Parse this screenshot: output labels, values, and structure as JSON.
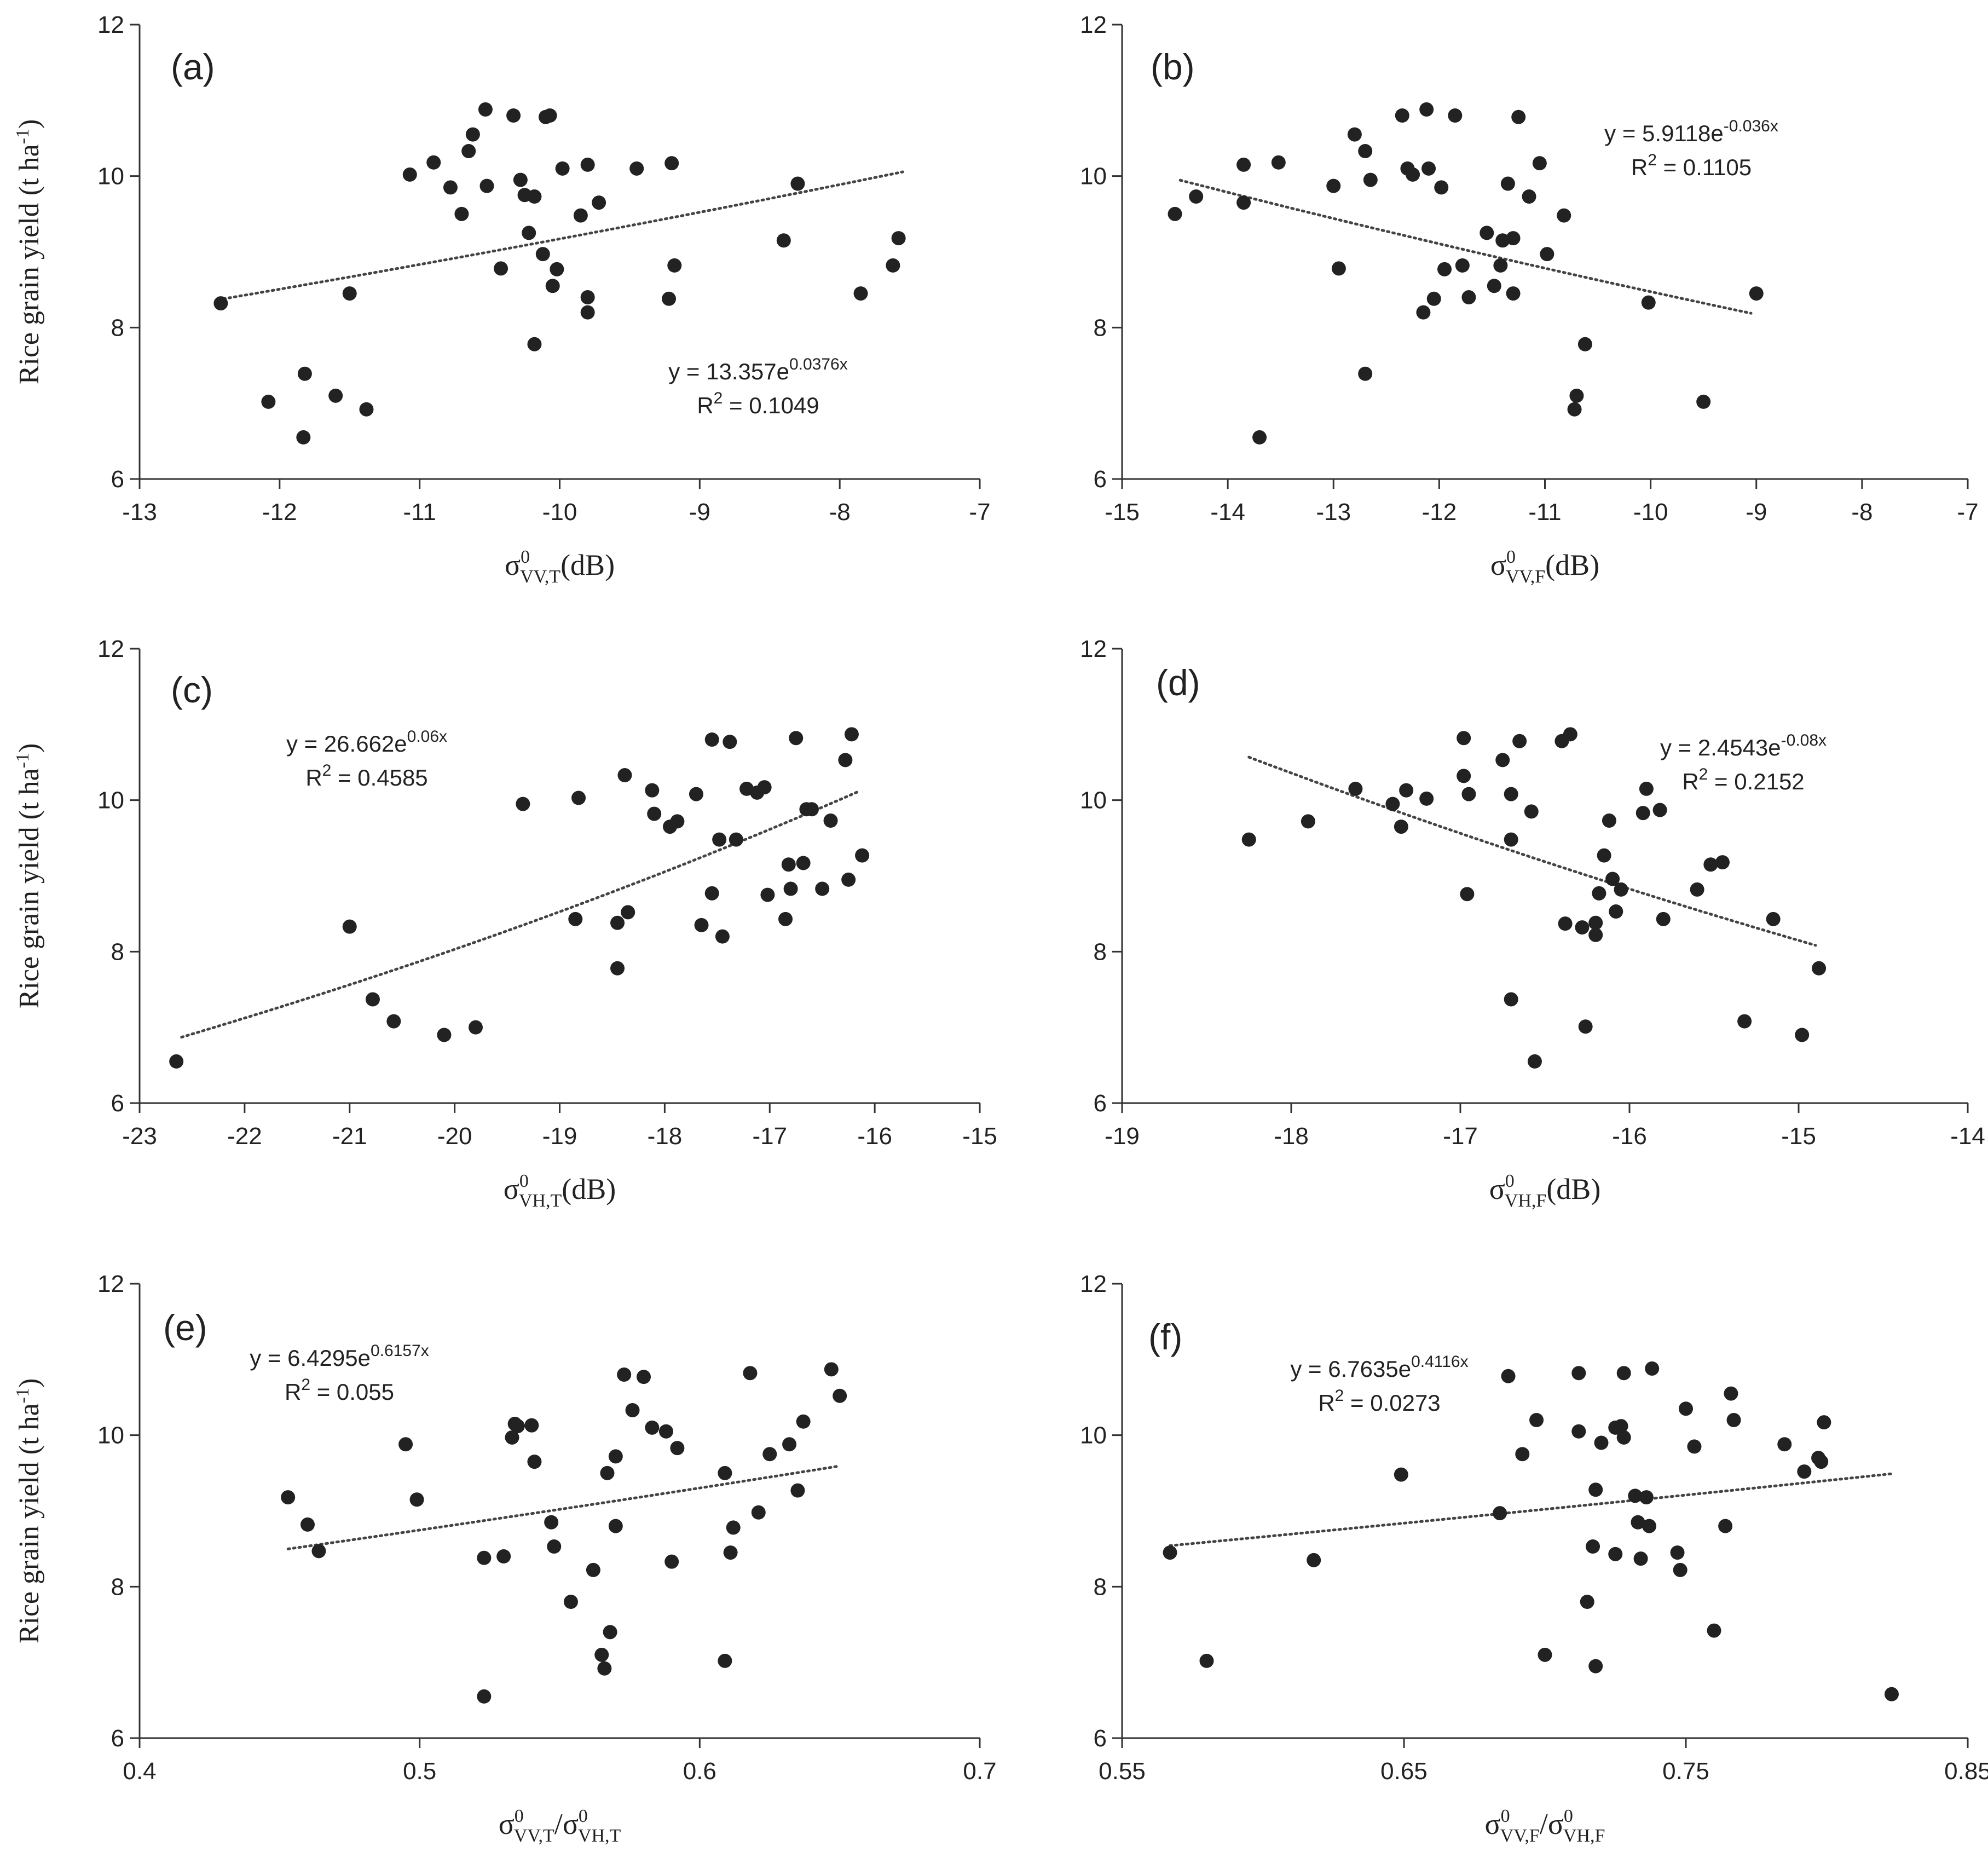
{
  "figure": {
    "y_axis_label": "Rice grain yield (t ha",
    "y_axis_label_sup": "-1",
    "y_axis_label_end": ")"
  },
  "chart_data": [
    {
      "id": "a",
      "type": "scatter",
      "panel_label": "(a)",
      "x_label": {
        "sigma": "σ",
        "sup": "0",
        "sub": "VV,T",
        "tail": "(dB)"
      },
      "xlim": [
        -13,
        -7
      ],
      "ylim": [
        6,
        12
      ],
      "xticks": [
        -13,
        -12,
        -11,
        -10,
        -9,
        -8,
        -7
      ],
      "yticks": [
        6,
        8,
        10,
        12
      ],
      "trend": {
        "type": "exponential",
        "a": 13.357,
        "b": 0.0376,
        "x_range": [
          -12.4,
          -7.55
        ]
      },
      "equation": {
        "prefix": "y = 13.357e",
        "exponent": "0.0376x"
      },
      "r_squared": {
        "prefix": "R",
        "sup": "2",
        "value": " = 0.1049"
      },
      "legend_position": "lower-right",
      "points": [
        [
          -12.42,
          8.32
        ],
        [
          -12.08,
          7.02
        ],
        [
          -11.83,
          6.55
        ],
        [
          -11.82,
          7.39
        ],
        [
          -11.6,
          7.1
        ],
        [
          -11.5,
          8.45
        ],
        [
          -11.38,
          6.92
        ],
        [
          -11.07,
          10.02
        ],
        [
          -10.9,
          10.18
        ],
        [
          -10.78,
          9.85
        ],
        [
          -10.7,
          9.5
        ],
        [
          -10.65,
          10.33
        ],
        [
          -10.62,
          10.55
        ],
        [
          -10.53,
          10.88
        ],
        [
          -10.52,
          9.87
        ],
        [
          -10.42,
          8.78
        ],
        [
          -10.33,
          10.8
        ],
        [
          -10.28,
          9.95
        ],
        [
          -10.25,
          9.75
        ],
        [
          -10.22,
          9.25
        ],
        [
          -10.18,
          9.73
        ],
        [
          -10.18,
          7.78
        ],
        [
          -10.12,
          8.97
        ],
        [
          -10.1,
          10.78
        ],
        [
          -10.07,
          10.8
        ],
        [
          -10.05,
          8.55
        ],
        [
          -10.02,
          8.77
        ],
        [
          -9.98,
          10.1
        ],
        [
          -9.85,
          9.48
        ],
        [
          -9.8,
          10.15
        ],
        [
          -9.8,
          8.4
        ],
        [
          -9.8,
          8.2
        ],
        [
          -9.72,
          9.65
        ],
        [
          -9.45,
          10.1
        ],
        [
          -9.22,
          8.38
        ],
        [
          -9.2,
          10.17
        ],
        [
          -9.18,
          8.82
        ],
        [
          -8.4,
          9.15
        ],
        [
          -8.3,
          9.9
        ],
        [
          -7.85,
          8.45
        ],
        [
          -7.62,
          8.82
        ],
        [
          -7.58,
          9.18
        ]
      ]
    },
    {
      "id": "b",
      "type": "scatter",
      "panel_label": "(b)",
      "x_label": {
        "sigma": "σ",
        "sup": "0",
        "sub": "VV,F",
        "tail": "(dB)"
      },
      "xlim": [
        -15,
        -7
      ],
      "ylim": [
        6,
        12
      ],
      "xticks": [
        -15,
        -14,
        -13,
        -12,
        -11,
        -10,
        -9,
        -8,
        -7
      ],
      "yticks": [
        6,
        8,
        10,
        12
      ],
      "trend": {
        "type": "exponential",
        "a": 5.9118,
        "b": -0.036,
        "x_range": [
          -14.45,
          -9.05
        ]
      },
      "equation": {
        "prefix": "y = 5.9118e",
        "exponent": "-0.036x"
      },
      "r_squared": {
        "prefix": "R",
        "sup": "2",
        "value": " = 0.1105"
      },
      "legend_position": "top-right",
      "points": [
        [
          -14.5,
          9.5
        ],
        [
          -14.3,
          9.73
        ],
        [
          -13.85,
          9.65
        ],
        [
          -13.85,
          10.15
        ],
        [
          -13.7,
          6.55
        ],
        [
          -13.52,
          10.18
        ],
        [
          -13.0,
          9.87
        ],
        [
          -12.95,
          8.78
        ],
        [
          -12.8,
          10.55
        ],
        [
          -12.7,
          10.33
        ],
        [
          -12.7,
          7.39
        ],
        [
          -12.65,
          9.95
        ],
        [
          -12.35,
          10.8
        ],
        [
          -12.3,
          10.1
        ],
        [
          -12.25,
          10.02
        ],
        [
          -12.15,
          8.2
        ],
        [
          -12.12,
          10.88
        ],
        [
          -12.1,
          10.1
        ],
        [
          -12.05,
          8.38
        ],
        [
          -11.98,
          9.85
        ],
        [
          -11.95,
          8.77
        ],
        [
          -11.85,
          10.8
        ],
        [
          -11.78,
          8.82
        ],
        [
          -11.72,
          8.4
        ],
        [
          -11.55,
          9.25
        ],
        [
          -11.48,
          8.55
        ],
        [
          -11.42,
          8.82
        ],
        [
          -11.4,
          9.15
        ],
        [
          -11.35,
          9.9
        ],
        [
          -11.3,
          9.18
        ],
        [
          -11.3,
          8.45
        ],
        [
          -11.25,
          10.78
        ],
        [
          -11.15,
          9.73
        ],
        [
          -11.05,
          10.17
        ],
        [
          -10.98,
          8.97
        ],
        [
          -10.82,
          9.48
        ],
        [
          -10.72,
          6.92
        ],
        [
          -10.7,
          7.1
        ],
        [
          -10.62,
          7.78
        ],
        [
          -10.02,
          8.33
        ],
        [
          -9.5,
          7.02
        ],
        [
          -9.0,
          8.45
        ]
      ]
    },
    {
      "id": "c",
      "type": "scatter",
      "panel_label": "(c)",
      "x_label": {
        "sigma": "σ",
        "sup": "0",
        "sub": "VH,T",
        "tail": "(dB)"
      },
      "xlim": [
        -23,
        -15
      ],
      "ylim": [
        6,
        12
      ],
      "xticks": [
        -23,
        -22,
        -21,
        -20,
        -19,
        -18,
        -17,
        -16,
        -15
      ],
      "yticks": [
        6,
        8,
        10,
        12
      ],
      "trend": {
        "type": "exponential",
        "a": 26.662,
        "b": 0.06,
        "x_range": [
          -22.6,
          -16.15
        ]
      },
      "equation": {
        "prefix": "y = 26.662e",
        "exponent": "0.06x"
      },
      "r_squared": {
        "prefix": "R",
        "sup": "2",
        "value": " = 0.4585"
      },
      "legend_position": "top-left",
      "points": [
        [
          -22.65,
          6.55
        ],
        [
          -21.0,
          8.33
        ],
        [
          -20.78,
          7.37
        ],
        [
          -20.58,
          7.08
        ],
        [
          -20.1,
          6.9
        ],
        [
          -19.8,
          7.0
        ],
        [
          -19.35,
          9.95
        ],
        [
          -18.85,
          8.43
        ],
        [
          -18.82,
          10.03
        ],
        [
          -18.45,
          8.38
        ],
        [
          -18.45,
          7.78
        ],
        [
          -18.38,
          10.33
        ],
        [
          -18.35,
          8.52
        ],
        [
          -18.12,
          10.13
        ],
        [
          -18.1,
          9.82
        ],
        [
          -17.95,
          9.65
        ],
        [
          -17.88,
          9.72
        ],
        [
          -17.7,
          10.08
        ],
        [
          -17.65,
          8.35
        ],
        [
          -17.55,
          10.8
        ],
        [
          -17.55,
          8.77
        ],
        [
          -17.48,
          9.48
        ],
        [
          -17.45,
          8.2
        ],
        [
          -17.38,
          10.77
        ],
        [
          -17.32,
          9.48
        ],
        [
          -17.22,
          10.15
        ],
        [
          -17.12,
          10.1
        ],
        [
          -17.05,
          10.17
        ],
        [
          -17.02,
          8.75
        ],
        [
          -16.85,
          8.43
        ],
        [
          -16.82,
          9.15
        ],
        [
          -16.8,
          8.83
        ],
        [
          -16.75,
          10.82
        ],
        [
          -16.68,
          9.17
        ],
        [
          -16.65,
          9.88
        ],
        [
          -16.6,
          9.88
        ],
        [
          -16.5,
          8.83
        ],
        [
          -16.42,
          9.73
        ],
        [
          -16.28,
          10.53
        ],
        [
          -16.25,
          8.95
        ],
        [
          -16.22,
          10.87
        ],
        [
          -16.12,
          9.27
        ]
      ]
    },
    {
      "id": "d",
      "type": "scatter",
      "panel_label": "(d)",
      "x_label": {
        "sigma": "σ",
        "sup": "0",
        "sub": "VH,F",
        "tail": "(dB)"
      },
      "xlim": [
        -19,
        -14
      ],
      "ylim": [
        6,
        12
      ],
      "xticks": [
        -19,
        -18,
        -17,
        -16,
        -15,
        -14
      ],
      "yticks": [
        6,
        8,
        10,
        12
      ],
      "trend": {
        "type": "exponential",
        "a": 2.4543,
        "b": -0.08,
        "x_range": [
          -18.25,
          -14.9
        ]
      },
      "equation": {
        "prefix": "y = 2.4543e",
        "exponent": "-0.08x"
      },
      "r_squared": {
        "prefix": "R",
        "sup": "2",
        "value": " = 0.2152"
      },
      "legend_position": "top-right",
      "points": [
        [
          -18.25,
          9.48
        ],
        [
          -17.9,
          9.72
        ],
        [
          -17.62,
          10.15
        ],
        [
          -17.4,
          9.95
        ],
        [
          -17.35,
          9.65
        ],
        [
          -17.32,
          10.13
        ],
        [
          -17.2,
          10.02
        ],
        [
          -16.98,
          10.82
        ],
        [
          -16.98,
          10.32
        ],
        [
          -16.96,
          8.76
        ],
        [
          -16.95,
          10.08
        ],
        [
          -16.75,
          10.53
        ],
        [
          -16.7,
          10.08
        ],
        [
          -16.7,
          9.48
        ],
        [
          -16.7,
          7.37
        ],
        [
          -16.65,
          10.78
        ],
        [
          -16.58,
          9.85
        ],
        [
          -16.56,
          6.55
        ],
        [
          -16.4,
          10.78
        ],
        [
          -16.38,
          8.37
        ],
        [
          -16.35,
          10.87
        ],
        [
          -16.28,
          8.32
        ],
        [
          -16.26,
          7.01
        ],
        [
          -16.2,
          8.38
        ],
        [
          -16.2,
          8.22
        ],
        [
          -16.18,
          8.77
        ],
        [
          -16.15,
          9.27
        ],
        [
          -16.12,
          9.73
        ],
        [
          -16.1,
          8.96
        ],
        [
          -16.08,
          8.53
        ],
        [
          -16.05,
          8.82
        ],
        [
          -15.92,
          9.83
        ],
        [
          -15.9,
          10.15
        ],
        [
          -15.82,
          9.87
        ],
        [
          -15.8,
          8.43
        ],
        [
          -15.6,
          8.82
        ],
        [
          -15.52,
          9.15
        ],
        [
          -15.45,
          9.18
        ],
        [
          -15.32,
          7.08
        ],
        [
          -15.15,
          8.43
        ],
        [
          -14.98,
          6.9
        ],
        [
          -14.88,
          7.78
        ]
      ]
    },
    {
      "id": "e",
      "type": "scatter",
      "panel_label": "(e)",
      "x_label": {
        "sigma": "σ",
        "sup": "0",
        "sub": "VV,T",
        "slash": "/",
        "sigma2": "σ",
        "sup2": "0",
        "sub2": "VH,T"
      },
      "xlim": [
        0.4,
        0.7
      ],
      "ylim": [
        6,
        12
      ],
      "xticks": [
        0.4,
        0.5,
        0.6,
        0.7
      ],
      "yticks": [
        6,
        8,
        10,
        12
      ],
      "trend": {
        "type": "exponential",
        "a": 6.4295,
        "b": 0.6157,
        "x_range": [
          0.453,
          0.65
        ]
      },
      "equation": {
        "prefix": "y = 6.4295e",
        "exponent": "0.6157x"
      },
      "r_squared": {
        "prefix": "R",
        "sup": "2",
        "value": " = 0.055"
      },
      "legend_position": "top-left",
      "points": [
        [
          0.453,
          9.18
        ],
        [
          0.46,
          8.82
        ],
        [
          0.464,
          8.47
        ],
        [
          0.495,
          9.88
        ],
        [
          0.499,
          9.15
        ],
        [
          0.523,
          8.38
        ],
        [
          0.523,
          6.55
        ],
        [
          0.53,
          8.4
        ],
        [
          0.533,
          9.97
        ],
        [
          0.534,
          10.15
        ],
        [
          0.535,
          10.12
        ],
        [
          0.54,
          10.13
        ],
        [
          0.541,
          9.65
        ],
        [
          0.547,
          8.85
        ],
        [
          0.548,
          8.53
        ],
        [
          0.554,
          7.8
        ],
        [
          0.562,
          8.22
        ],
        [
          0.565,
          7.1
        ],
        [
          0.566,
          6.92
        ],
        [
          0.567,
          9.5
        ],
        [
          0.568,
          7.4
        ],
        [
          0.57,
          9.72
        ],
        [
          0.57,
          8.8
        ],
        [
          0.573,
          10.8
        ],
        [
          0.576,
          10.33
        ],
        [
          0.58,
          10.77
        ],
        [
          0.583,
          10.1
        ],
        [
          0.588,
          10.05
        ],
        [
          0.59,
          8.33
        ],
        [
          0.592,
          9.83
        ],
        [
          0.609,
          9.5
        ],
        [
          0.609,
          7.02
        ],
        [
          0.611,
          8.45
        ],
        [
          0.612,
          8.78
        ],
        [
          0.618,
          10.82
        ],
        [
          0.621,
          8.98
        ],
        [
          0.625,
          9.75
        ],
        [
          0.632,
          9.88
        ],
        [
          0.635,
          9.27
        ],
        [
          0.637,
          10.18
        ],
        [
          0.647,
          10.87
        ],
        [
          0.65,
          10.52
        ]
      ]
    },
    {
      "id": "f",
      "type": "scatter",
      "panel_label": "(f)",
      "x_label": {
        "sigma": "σ",
        "sup": "0",
        "sub": "VV,F",
        "slash": "/",
        "sigma2": "σ",
        "sup2": "0",
        "sub2": "VH,F"
      },
      "xlim": [
        0.55,
        0.85
      ],
      "ylim": [
        6,
        12
      ],
      "xticks": [
        0.55,
        0.65,
        0.75,
        0.85
      ],
      "xtick_labels": [
        "0.55",
        "0.65",
        "0.75",
        "0.85"
      ],
      "yticks": [
        6,
        8,
        10,
        12
      ],
      "trend": {
        "type": "exponential",
        "a": 6.7635,
        "b": 0.4116,
        "x_range": [
          0.567,
          0.823
        ]
      },
      "equation": {
        "prefix": "y = 6.7635e",
        "exponent": "0.4116x"
      },
      "r_squared": {
        "prefix": "R",
        "sup": "2",
        "value": " = 0.0273"
      },
      "legend_position": "top-left",
      "points": [
        [
          0.567,
          8.45
        ],
        [
          0.58,
          7.02
        ],
        [
          0.618,
          8.35
        ],
        [
          0.649,
          9.48
        ],
        [
          0.684,
          8.97
        ],
        [
          0.687,
          10.78
        ],
        [
          0.692,
          9.75
        ],
        [
          0.697,
          10.2
        ],
        [
          0.7,
          7.1
        ],
        [
          0.712,
          10.82
        ],
        [
          0.712,
          10.05
        ],
        [
          0.715,
          7.8
        ],
        [
          0.717,
          8.53
        ],
        [
          0.718,
          9.28
        ],
        [
          0.718,
          6.95
        ],
        [
          0.72,
          9.9
        ],
        [
          0.725,
          10.1
        ],
        [
          0.725,
          8.43
        ],
        [
          0.727,
          10.12
        ],
        [
          0.728,
          10.82
        ],
        [
          0.728,
          9.97
        ],
        [
          0.732,
          9.2
        ],
        [
          0.733,
          8.85
        ],
        [
          0.734,
          8.37
        ],
        [
          0.736,
          9.18
        ],
        [
          0.737,
          8.8
        ],
        [
          0.738,
          10.88
        ],
        [
          0.747,
          8.45
        ],
        [
          0.748,
          8.22
        ],
        [
          0.75,
          10.35
        ],
        [
          0.753,
          9.85
        ],
        [
          0.76,
          7.42
        ],
        [
          0.764,
          8.8
        ],
        [
          0.766,
          10.55
        ],
        [
          0.767,
          10.2
        ],
        [
          0.785,
          9.88
        ],
        [
          0.792,
          9.52
        ],
        [
          0.797,
          9.7
        ],
        [
          0.798,
          9.65
        ],
        [
          0.799,
          10.17
        ],
        [
          0.823,
          6.58
        ]
      ]
    }
  ]
}
